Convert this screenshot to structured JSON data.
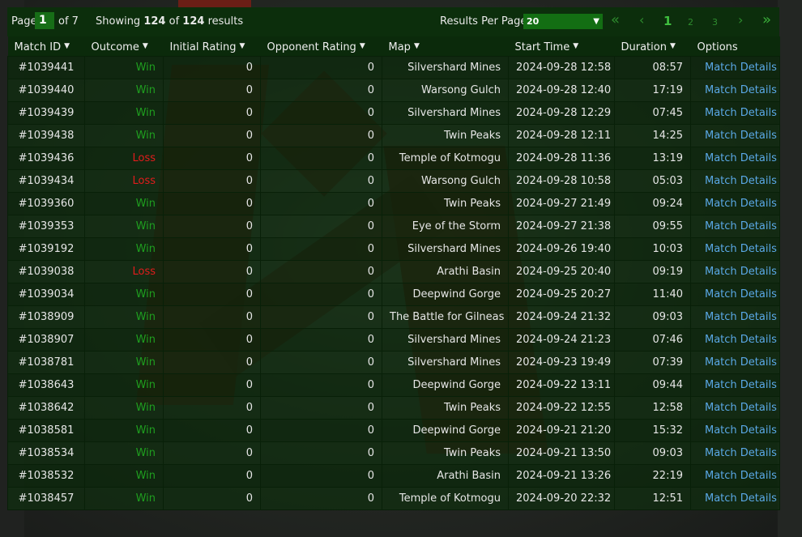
{
  "pagination": {
    "page_label": "Page",
    "page_value": "1",
    "of_label": "of 7",
    "showing_prefix": "Showing",
    "showing_count": "124",
    "showing_of": "of",
    "showing_total": "124",
    "showing_suffix": "results",
    "rpp_label": "Results Per Page:",
    "rpp_value": "20",
    "first_icon": "«",
    "prev_icon": "‹",
    "pages": [
      "1",
      "2",
      "3"
    ],
    "next_icon": "›",
    "last_icon": "»"
  },
  "columns": [
    "Match ID",
    "Outcome",
    "Initial Rating",
    "Opponent Rating",
    "Map",
    "Start Time",
    "Duration",
    "Options"
  ],
  "rows": [
    {
      "id": "#1039441",
      "outcome": "Win",
      "initial": "0",
      "opponent": "0",
      "map": "Silvershard Mines",
      "start": "2024-09-28 12:58",
      "duration": "08:57",
      "option": "Match Details"
    },
    {
      "id": "#1039440",
      "outcome": "Win",
      "initial": "0",
      "opponent": "0",
      "map": "Warsong Gulch",
      "start": "2024-09-28 12:40",
      "duration": "17:19",
      "option": "Match Details"
    },
    {
      "id": "#1039439",
      "outcome": "Win",
      "initial": "0",
      "opponent": "0",
      "map": "Silvershard Mines",
      "start": "2024-09-28 12:29",
      "duration": "07:45",
      "option": "Match Details"
    },
    {
      "id": "#1039438",
      "outcome": "Win",
      "initial": "0",
      "opponent": "0",
      "map": "Twin Peaks",
      "start": "2024-09-28 12:11",
      "duration": "14:25",
      "option": "Match Details"
    },
    {
      "id": "#1039436",
      "outcome": "Loss",
      "initial": "0",
      "opponent": "0",
      "map": "Temple of Kotmogu",
      "start": "2024-09-28 11:36",
      "duration": "13:19",
      "option": "Match Details"
    },
    {
      "id": "#1039434",
      "outcome": "Loss",
      "initial": "0",
      "opponent": "0",
      "map": "Warsong Gulch",
      "start": "2024-09-28 10:58",
      "duration": "05:03",
      "option": "Match Details"
    },
    {
      "id": "#1039360",
      "outcome": "Win",
      "initial": "0",
      "opponent": "0",
      "map": "Twin Peaks",
      "start": "2024-09-27 21:49",
      "duration": "09:24",
      "option": "Match Details"
    },
    {
      "id": "#1039353",
      "outcome": "Win",
      "initial": "0",
      "opponent": "0",
      "map": "Eye of the Storm",
      "start": "2024-09-27 21:38",
      "duration": "09:55",
      "option": "Match Details"
    },
    {
      "id": "#1039192",
      "outcome": "Win",
      "initial": "0",
      "opponent": "0",
      "map": "Silvershard Mines",
      "start": "2024-09-26 19:40",
      "duration": "10:03",
      "option": "Match Details"
    },
    {
      "id": "#1039038",
      "outcome": "Loss",
      "initial": "0",
      "opponent": "0",
      "map": "Arathi Basin",
      "start": "2024-09-25 20:40",
      "duration": "09:19",
      "option": "Match Details"
    },
    {
      "id": "#1039034",
      "outcome": "Win",
      "initial": "0",
      "opponent": "0",
      "map": "Deepwind Gorge",
      "start": "2024-09-25 20:27",
      "duration": "11:40",
      "option": "Match Details"
    },
    {
      "id": "#1038909",
      "outcome": "Win",
      "initial": "0",
      "opponent": "0",
      "map": "The Battle for Gilneas",
      "start": "2024-09-24 21:32",
      "duration": "09:03",
      "option": "Match Details"
    },
    {
      "id": "#1038907",
      "outcome": "Win",
      "initial": "0",
      "opponent": "0",
      "map": "Silvershard Mines",
      "start": "2024-09-24 21:23",
      "duration": "07:46",
      "option": "Match Details"
    },
    {
      "id": "#1038781",
      "outcome": "Win",
      "initial": "0",
      "opponent": "0",
      "map": "Silvershard Mines",
      "start": "2024-09-23 19:49",
      "duration": "07:39",
      "option": "Match Details"
    },
    {
      "id": "#1038643",
      "outcome": "Win",
      "initial": "0",
      "opponent": "0",
      "map": "Deepwind Gorge",
      "start": "2024-09-22 13:11",
      "duration": "09:44",
      "option": "Match Details"
    },
    {
      "id": "#1038642",
      "outcome": "Win",
      "initial": "0",
      "opponent": "0",
      "map": "Twin Peaks",
      "start": "2024-09-22 12:55",
      "duration": "12:58",
      "option": "Match Details"
    },
    {
      "id": "#1038581",
      "outcome": "Win",
      "initial": "0",
      "opponent": "0",
      "map": "Deepwind Gorge",
      "start": "2024-09-21 21:20",
      "duration": "15:32",
      "option": "Match Details"
    },
    {
      "id": "#1038534",
      "outcome": "Win",
      "initial": "0",
      "opponent": "0",
      "map": "Twin Peaks",
      "start": "2024-09-21 13:50",
      "duration": "09:03",
      "option": "Match Details"
    },
    {
      "id": "#1038532",
      "outcome": "Win",
      "initial": "0",
      "opponent": "0",
      "map": "Arathi Basin",
      "start": "2024-09-21 13:26",
      "duration": "22:19",
      "option": "Match Details"
    },
    {
      "id": "#1038457",
      "outcome": "Win",
      "initial": "0",
      "opponent": "0",
      "map": "Temple of Kotmogu",
      "start": "2024-09-20 22:32",
      "duration": "12:51",
      "option": "Match Details"
    }
  ],
  "colors": {
    "win": "#1f9f1f",
    "loss": "#e21c1c",
    "link": "#5aa8e6",
    "header_bg": "#0c2e0c",
    "accent": "#176e17"
  }
}
